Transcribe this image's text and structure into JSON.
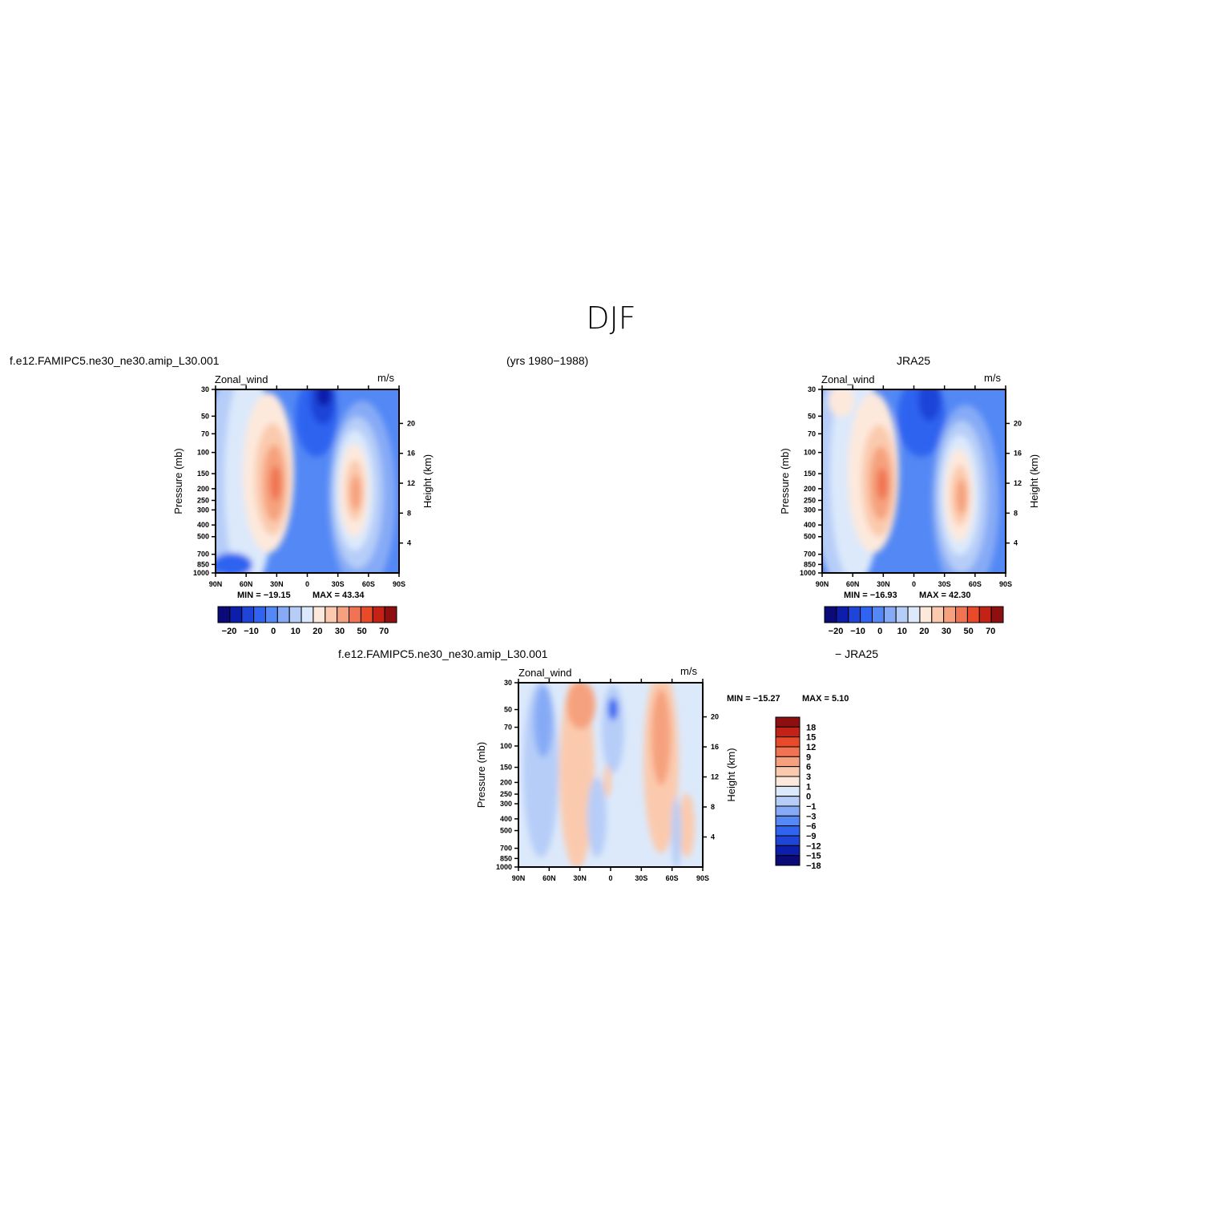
{
  "figure": {
    "season": "DJF",
    "left_header": "f.e12.FAMIPC5.ne30_ne30.amip_L30.001",
    "center_header": "(yrs 1980−1988)",
    "right_header": "JRA25",
    "diff_header_left": "f.e12.FAMIPC5.ne30_ne30.amip_L30.001",
    "diff_header_right": "− JRA25"
  },
  "panels": [
    {
      "id": "model",
      "variable": "Zonal_wind",
      "units": "m/s",
      "min_label": "MIN = −19.15",
      "max_label": "MAX =   43.34"
    },
    {
      "id": "obs",
      "variable": "Zonal_wind",
      "units": "m/s",
      "min_label": "MIN = −16.93",
      "max_label": "MAX =   42.30"
    },
    {
      "id": "diff",
      "variable": "Zonal_wind",
      "units": "m/s",
      "min_label": "MIN = −15.27",
      "max_label": "MAX =    5.10"
    }
  ],
  "colors": {
    "abs_scale": [
      "#0a0a78",
      "#0c1eaa",
      "#1f45d8",
      "#2f63f0",
      "#5388f5",
      "#86aaf6",
      "#b6cdf8",
      "#dce9fb",
      "#fde9dc",
      "#fbcaae",
      "#f6a17d",
      "#f07453",
      "#e84a2a",
      "#c32214",
      "#8d0f0f"
    ],
    "diff_scale": [
      "#0a0a78",
      "#0c1eaa",
      "#1f45d8",
      "#2f63f0",
      "#5388f5",
      "#86aaf6",
      "#b6cdf8",
      "#dce9fb",
      "#fde9dc",
      "#fbcaae",
      "#f6a17d",
      "#f07453",
      "#e84a2a",
      "#c32214",
      "#8d0f0f"
    ]
  },
  "chart_data": [
    {
      "type": "heatmap",
      "title": "Zonal_wind",
      "xlabel": "",
      "ylabel": "Pressure (mb)",
      "y2label": "Height (km)",
      "x_tick_labels": [
        "90N",
        "60N",
        "30N",
        "0",
        "30S",
        "60S",
        "90S"
      ],
      "y_tick_labels": [
        "30",
        "50",
        "70",
        "100",
        "150",
        "200",
        "250",
        "300",
        "400",
        "500",
        "700",
        "850",
        "1000"
      ],
      "y2_tick_labels": [
        "20",
        "16",
        "12",
        "8",
        "4"
      ],
      "colorbar_labels": [
        "−20",
        "−10",
        "0",
        "10",
        "20",
        "30",
        "50",
        "70"
      ],
      "levels": [
        -25,
        -20,
        -15,
        -10,
        -5,
        0,
        5,
        10,
        15,
        20,
        25,
        30,
        40,
        50,
        60,
        70
      ],
      "min": -19.15,
      "max": 43.34
    },
    {
      "type": "heatmap",
      "title": "Zonal_wind",
      "xlabel": "",
      "ylabel": "Pressure (mb)",
      "y2label": "Height (km)",
      "x_tick_labels": [
        "90N",
        "60N",
        "30N",
        "0",
        "30S",
        "60S",
        "90S"
      ],
      "y_tick_labels": [
        "30",
        "50",
        "70",
        "100",
        "150",
        "200",
        "250",
        "300",
        "400",
        "500",
        "700",
        "850",
        "1000"
      ],
      "y2_tick_labels": [
        "20",
        "16",
        "12",
        "8",
        "4"
      ],
      "colorbar_labels": [
        "−20",
        "−10",
        "0",
        "10",
        "20",
        "30",
        "50",
        "70"
      ],
      "levels": [
        -25,
        -20,
        -15,
        -10,
        -5,
        0,
        5,
        10,
        15,
        20,
        25,
        30,
        40,
        50,
        60,
        70
      ],
      "min": -16.93,
      "max": 42.3
    },
    {
      "type": "heatmap",
      "title": "Zonal_wind",
      "xlabel": "",
      "ylabel": "Pressure (mb)",
      "y2label": "Height (km)",
      "x_tick_labels": [
        "90N",
        "60N",
        "30N",
        "0",
        "30S",
        "60S",
        "90S"
      ],
      "y_tick_labels": [
        "30",
        "50",
        "70",
        "100",
        "150",
        "200",
        "250",
        "300",
        "400",
        "500",
        "700",
        "850",
        "1000"
      ],
      "y2_tick_labels": [
        "20",
        "16",
        "12",
        "8",
        "4"
      ],
      "colorbar_labels": [
        "18",
        "15",
        "12",
        "9",
        "6",
        "3",
        "1",
        "0",
        "−1",
        "−3",
        "−6",
        "−9",
        "−12",
        "−15",
        "−18"
      ],
      "levels": [
        -18,
        -15,
        -12,
        -9,
        -6,
        -3,
        -1,
        0,
        1,
        3,
        6,
        9,
        12,
        15,
        18
      ],
      "min": -15.27,
      "max": 5.1
    }
  ]
}
